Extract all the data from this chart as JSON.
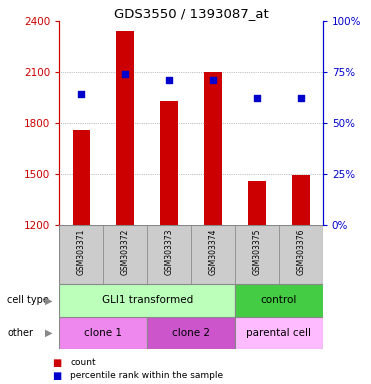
{
  "title": "GDS3550 / 1393087_at",
  "samples": [
    "GSM303371",
    "GSM303372",
    "GSM303373",
    "GSM303374",
    "GSM303375",
    "GSM303376"
  ],
  "counts": [
    1760,
    2340,
    1930,
    2100,
    1460,
    1490
  ],
  "percentiles": [
    64,
    74,
    71,
    71,
    62,
    62
  ],
  "ylim_left": [
    1200,
    2400
  ],
  "ylim_right": [
    0,
    100
  ],
  "yticks_left": [
    1200,
    1500,
    1800,
    2100,
    2400
  ],
  "yticks_right": [
    0,
    25,
    50,
    75,
    100
  ],
  "bar_color": "#cc0000",
  "dot_color": "#0000cc",
  "cell_type_groups": [
    {
      "label": "GLI1 transformed",
      "cols": [
        0,
        1,
        2,
        3
      ],
      "color": "#bbffbb"
    },
    {
      "label": "control",
      "cols": [
        4,
        5
      ],
      "color": "#44cc44"
    }
  ],
  "other_groups": [
    {
      "label": "clone 1",
      "cols": [
        0,
        1
      ],
      "color": "#ee88ee"
    },
    {
      "label": "clone 2",
      "cols": [
        2,
        3
      ],
      "color": "#cc55cc"
    },
    {
      "label": "parental cell",
      "cols": [
        4,
        5
      ],
      "color": "#ffbbff"
    }
  ],
  "legend_count_label": "count",
  "legend_pct_label": "percentile rank within the sample",
  "left_axis_color": "#cc0000",
  "right_axis_color": "#0000cc",
  "bar_width": 0.4,
  "grid_color": "#888888",
  "sample_bg_color": "#cccccc",
  "row_label_color": "#888888"
}
